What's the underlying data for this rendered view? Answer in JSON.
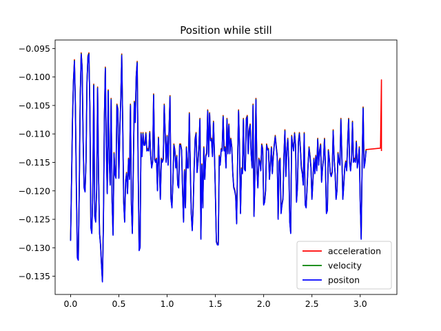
{
  "chart_data": {
    "type": "line",
    "title": "Position while still",
    "xlabel": "",
    "ylabel": "",
    "xlim": [
      -0.16,
      3.38
    ],
    "ylim": [
      -0.1382,
      -0.0935
    ],
    "xticks": [
      0.0,
      0.5,
      1.0,
      1.5,
      2.0,
      2.5,
      3.0
    ],
    "xtick_labels": [
      "0.0",
      "0.5",
      "1.0",
      "1.5",
      "2.0",
      "2.5",
      "3.0"
    ],
    "yticks": [
      -0.135,
      -0.13,
      -0.125,
      -0.12,
      -0.115,
      -0.11,
      -0.105,
      -0.1,
      -0.095
    ],
    "ytick_labels": [
      "−0.135",
      "−0.130",
      "−0.125",
      "−0.120",
      "−0.115",
      "−0.110",
      "−0.105",
      "−0.100",
      "−0.095"
    ],
    "legend_placement": "lower-right",
    "grid": false,
    "x_step": 0.01,
    "series": [
      {
        "name": "acceleration",
        "color": "#ff0000",
        "y_offset": 0.00025,
        "extra_points": [
          [
            3.21,
            -0.1125
          ],
          [
            3.22,
            -0.1005
          ],
          [
            3.22,
            -0.113
          ]
        ]
      },
      {
        "name": "velocity",
        "color": "#008000",
        "y_offset": 0.00012,
        "extra_points": []
      },
      {
        "name": "positon",
        "color": "#0000ff",
        "y_offset": 0.0,
        "extra_points": []
      }
    ],
    "base_values": [
      -0.1288,
      -0.1185,
      -0.1075,
      -0.1008,
      -0.0972,
      -0.1052,
      -0.1195,
      -0.1318,
      -0.1322,
      -0.1195,
      -0.1035,
      -0.096,
      -0.0985,
      -0.111,
      -0.1195,
      -0.1202,
      -0.115,
      -0.101,
      -0.0965,
      -0.096,
      -0.1055,
      -0.1265,
      -0.1275,
      -0.1205,
      -0.1015,
      -0.1245,
      -0.1255,
      -0.12,
      -0.102,
      -0.1175,
      -0.1275,
      -0.1295,
      -0.133,
      -0.136,
      -0.126,
      -0.1075,
      -0.0985,
      -0.1125,
      -0.1205,
      -0.1025,
      -0.1145,
      -0.119,
      -0.104,
      -0.122,
      -0.1278,
      -0.1135,
      -0.1172,
      -0.1178,
      -0.105,
      -0.1058,
      -0.1178,
      -0.1095,
      -0.104,
      -0.0962,
      -0.108,
      -0.122,
      -0.1255,
      -0.1185,
      -0.117,
      -0.1205,
      -0.1145,
      -0.118,
      -0.105,
      -0.1225,
      -0.1275,
      -0.1158,
      -0.1045,
      -0.108,
      -0.1,
      -0.0975,
      -0.116,
      -0.1305,
      -0.13,
      -0.11,
      -0.114,
      -0.11,
      -0.112,
      -0.112,
      -0.11,
      -0.113,
      -0.1128,
      -0.113,
      -0.1098,
      -0.114,
      -0.116,
      -0.115,
      -0.1032,
      -0.1145,
      -0.115,
      -0.1145,
      -0.12,
      -0.1108,
      -0.116,
      -0.1215,
      -0.1145,
      -0.115,
      -0.1145,
      -0.105,
      -0.11,
      -0.115,
      -0.1105,
      -0.1155,
      -0.1095,
      -0.1035,
      -0.1215,
      -0.123,
      -0.1185,
      -0.112,
      -0.113,
      -0.116,
      -0.114,
      -0.119,
      -0.1195,
      -0.112,
      -0.112,
      -0.113,
      -0.12,
      -0.1255,
      -0.1165,
      -0.123,
      -0.1125,
      -0.116,
      -0.116,
      -0.1065,
      -0.116,
      -0.124,
      -0.127,
      -0.123,
      -0.116,
      -0.111,
      -0.11,
      -0.1168,
      -0.115,
      -0.112,
      -0.1075,
      -0.1285,
      -0.1155,
      -0.123,
      -0.1125,
      -0.118,
      -0.114,
      -0.1135,
      -0.106,
      -0.114,
      -0.1065,
      -0.1112,
      -0.111,
      -0.114,
      -0.108,
      -0.1135,
      -0.1205,
      -0.129,
      -0.1295,
      -0.1295,
      -0.114,
      -0.1155,
      -0.1128,
      -0.113,
      -0.107,
      -0.113,
      -0.1125,
      -0.116,
      -0.1075,
      -0.1135,
      -0.1085,
      -0.1135,
      -0.111,
      -0.1125,
      -0.117,
      -0.1195,
      -0.12,
      -0.121,
      -0.1258,
      -0.115,
      -0.106,
      -0.1125,
      -0.124,
      -0.1162,
      -0.117,
      -0.1075,
      -0.1162,
      -0.1165,
      -0.1075,
      -0.107,
      -0.1135,
      -0.1095,
      -0.1085,
      -0.1135,
      -0.116,
      -0.105,
      -0.1245,
      -0.117,
      -0.104,
      -0.1165,
      -0.1195,
      -0.1145,
      -0.115,
      -0.1165,
      -0.112,
      -0.1128,
      -0.1225,
      -0.122,
      -0.12,
      -0.112,
      -0.1128,
      -0.1128,
      -0.118,
      -0.1155,
      -0.1125,
      -0.117,
      -0.114,
      -0.112,
      -0.1105,
      -0.1123,
      -0.114,
      -0.125,
      -0.115,
      -0.1145,
      -0.124,
      -0.1225,
      -0.1215,
      -0.114,
      -0.1095,
      -0.1175,
      -0.113,
      -0.111,
      -0.115,
      -0.1255,
      -0.1275,
      -0.1105,
      -0.112,
      -0.113,
      -0.11,
      -0.112,
      -0.122,
      -0.1195,
      -0.1115,
      -0.11,
      -0.1125,
      -0.116,
      -0.117,
      -0.119,
      -0.11,
      -0.1225,
      -0.123,
      -0.1195,
      -0.1155,
      -0.1125,
      -0.114,
      -0.116,
      -0.1215,
      -0.1185,
      -0.1145,
      -0.117,
      -0.114,
      -0.1165,
      -0.111,
      -0.1155,
      -0.113,
      -0.112,
      -0.1185,
      -0.116,
      -0.1145,
      -0.111,
      -0.116,
      -0.124,
      -0.1235,
      -0.113,
      -0.1145,
      -0.117,
      -0.1175,
      -0.1168,
      -0.1095,
      -0.1145,
      -0.117,
      -0.1215,
      -0.12,
      -0.1135,
      -0.115,
      -0.1155,
      -0.1075,
      -0.114,
      -0.1215,
      -0.119,
      -0.116,
      -0.115,
      -0.1165,
      -0.1115,
      -0.1075,
      -0.115,
      -0.1165,
      -0.1145,
      -0.108,
      -0.115,
      -0.1145,
      -0.115,
      -0.1115,
      -0.116,
      -0.115,
      -0.1125,
      -0.122,
      -0.1285,
      -0.115,
      -0.1055,
      -0.116,
      -0.115,
      -0.113
    ]
  }
}
